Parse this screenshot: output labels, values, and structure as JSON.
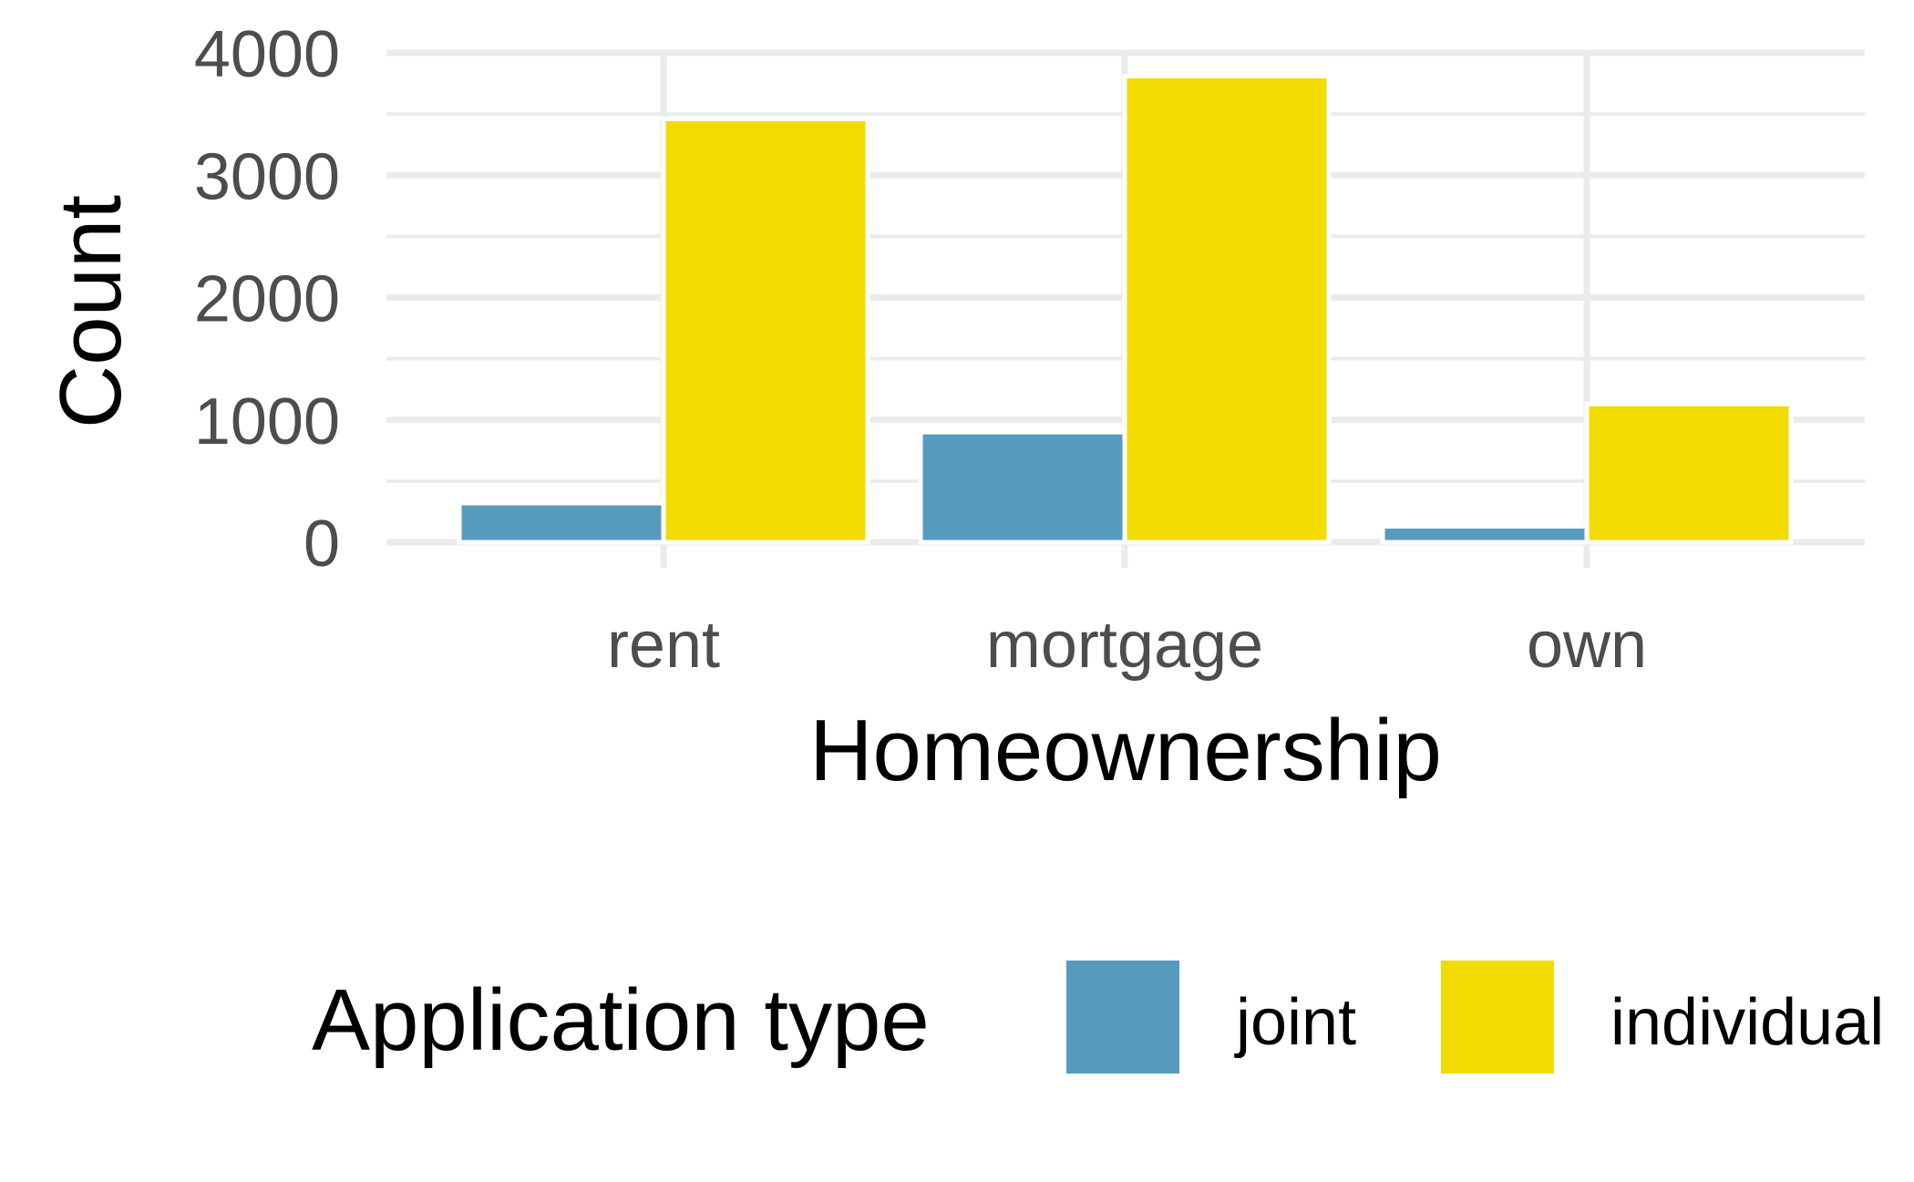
{
  "chart_data": {
    "type": "bar",
    "categories": [
      "rent",
      "mortgage",
      "own"
    ],
    "series": [
      {
        "name": "joint",
        "values": [
          320,
          900,
          130
        ],
        "color": "#569BBD"
      },
      {
        "name": "individual",
        "values": [
          3460,
          3810,
          1130
        ],
        "color": "#F2DC00"
      }
    ],
    "xlabel": "Homeownership",
    "ylabel": "Count",
    "ylim": [
      0,
      4000
    ],
    "yticks": [
      "0",
      "1000",
      "2000",
      "3000",
      "4000"
    ],
    "grid": true,
    "legend": {
      "title": "Application type",
      "position": "bottom",
      "items": [
        "joint",
        "individual"
      ]
    }
  }
}
